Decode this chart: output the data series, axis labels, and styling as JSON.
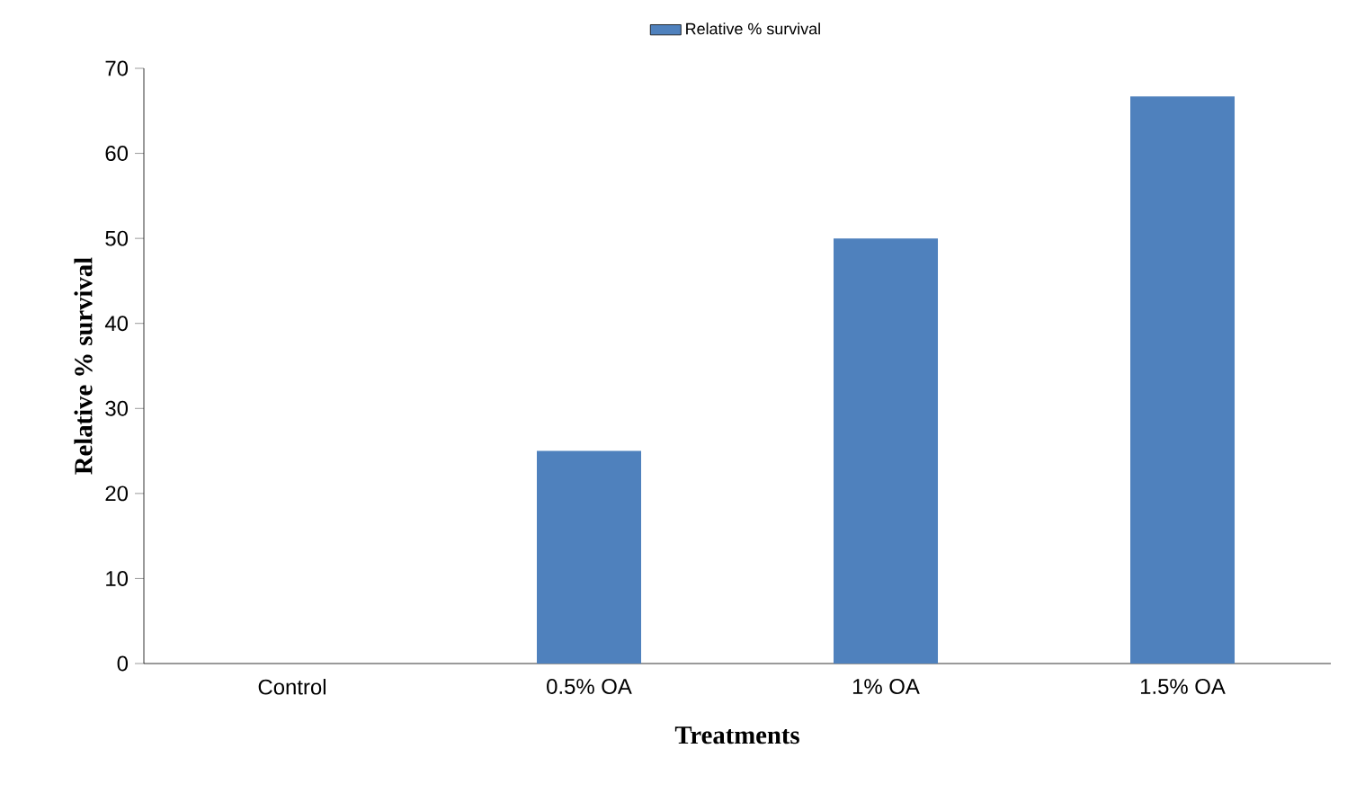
{
  "chart_data": {
    "type": "bar",
    "xlabel": "Treatments",
    "ylabel": "Relative % survival",
    "categories": [
      "Control",
      "0.5% OA",
      "1% OA",
      "1.5% OA"
    ],
    "series": [
      {
        "name": "Relative % survival",
        "color": "#4f81bd",
        "values": [
          0,
          25,
          50,
          66.7
        ]
      }
    ],
    "ylim": [
      0,
      70
    ],
    "yticks": [
      0,
      10,
      20,
      30,
      40,
      50,
      60,
      70
    ],
    "grid": false,
    "legend": "top"
  }
}
